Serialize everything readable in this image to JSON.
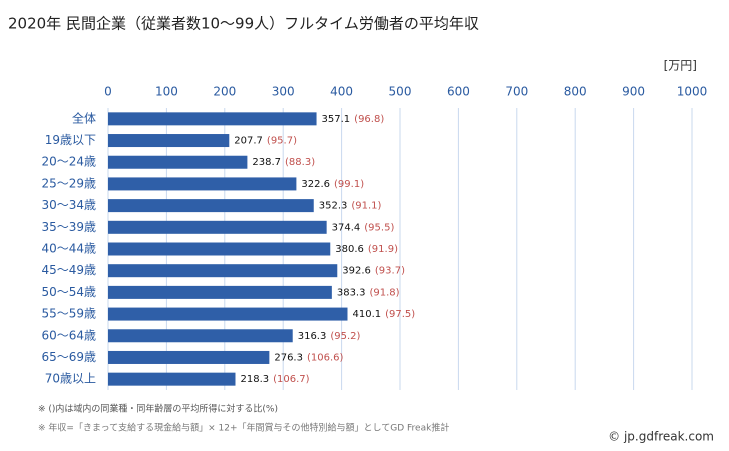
{
  "chart_data": {
    "type": "hbar",
    "title": "2020年 民間企業（従業者数10～99人）フルタイム労働者の平均年収",
    "unit": "[万円]",
    "categories": [
      "全体",
      "19歳以下",
      "20～24歳",
      "25～29歳",
      "30～34歳",
      "35～39歳",
      "40～44歳",
      "45～49歳",
      "50～54歳",
      "55～59歳",
      "60～64歳",
      "65～69歳",
      "70歳以上"
    ],
    "values": [
      357.1,
      207.7,
      238.7,
      322.6,
      352.3,
      374.4,
      380.6,
      392.6,
      383.3,
      410.1,
      316.3,
      276.3,
      218.3
    ],
    "ratios": [
      96.8,
      95.7,
      88.3,
      99.1,
      91.1,
      95.5,
      91.9,
      93.7,
      91.8,
      97.5,
      95.2,
      106.6,
      106.7
    ],
    "ratio_labels": [
      "(96.8)",
      "(95.7)",
      "(88.3)",
      "(99.1)",
      "(91.1)",
      "(95.5)",
      "(91.9)",
      "(93.7)",
      "(91.8)",
      "(97.5)",
      "(95.2)",
      "(106.6)",
      "(106.7)"
    ],
    "color": "#2f5fa8",
    "ratio_color": "#c0504d",
    "xlim": [
      0,
      1000
    ],
    "xticks": [
      0,
      100,
      200,
      300,
      400,
      500,
      600,
      700,
      800,
      900,
      1000
    ],
    "grid": true,
    "notes": [
      "※ ()内は域内の同業種・同年齢層の平均所得に対する比(%)",
      "※ 年収=「きまって支給する現金給与額」× 12+「年間賞与その他特別給与額」としてGD Freak推計"
    ],
    "credit": "© jp.gdfreak.com"
  }
}
